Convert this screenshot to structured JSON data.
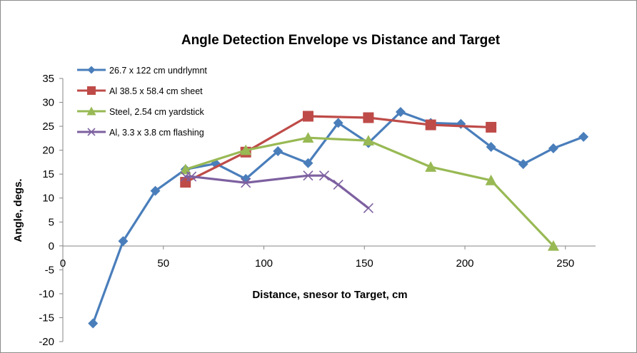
{
  "chart_data": {
    "type": "line",
    "title": "Angle Detection Envelope vs Distance and Target",
    "xlabel": "Distance, snesor to Target, cm",
    "ylabel": "Angle, degs.",
    "xlim": [
      0,
      265
    ],
    "ylim": [
      -20,
      35
    ],
    "xticks": [
      0,
      50,
      100,
      150,
      200,
      250
    ],
    "yticks": [
      -20,
      -15,
      -10,
      -5,
      0,
      5,
      10,
      15,
      20,
      25,
      30,
      35
    ],
    "grid": false,
    "legend_position": "top-left",
    "series": [
      {
        "name": "26.7 x 122 cm undrlymnt",
        "color": "#4a7ebb",
        "marker": "diamond",
        "x": [
          15,
          30,
          46,
          61,
          76,
          91,
          107,
          122,
          137,
          152,
          168,
          183,
          198,
          213,
          229,
          244,
          259
        ],
        "y": [
          -16.2,
          1.0,
          11.5,
          16.0,
          17.2,
          14.0,
          19.8,
          17.3,
          25.7,
          21.5,
          28.0,
          25.7,
          25.5,
          20.7,
          17.1,
          20.4,
          22.8
        ]
      },
      {
        "name": "Al 38.5 x 58.4 cm sheet",
        "color": "#be4b48",
        "marker": "square",
        "x": [
          61,
          91,
          122,
          152,
          183,
          213
        ],
        "y": [
          13.3,
          19.6,
          27.1,
          26.8,
          25.3,
          24.8
        ]
      },
      {
        "name": "Steel, 2.54 cm yardstick",
        "color": "#98b954",
        "marker": "triangle",
        "x": [
          61,
          91,
          122,
          152,
          183,
          213,
          244
        ],
        "y": [
          16.0,
          20.0,
          22.6,
          22.0,
          16.5,
          13.7,
          0.0
        ]
      },
      {
        "name": "Al, 3.3 x 3.8 cm flashing",
        "color": "#7d60a0",
        "marker": "x",
        "x": [
          61,
          64,
          91,
          122,
          130,
          137,
          152
        ],
        "y": [
          14.5,
          14.5,
          13.2,
          14.7,
          14.7,
          12.8,
          7.9
        ]
      }
    ]
  }
}
